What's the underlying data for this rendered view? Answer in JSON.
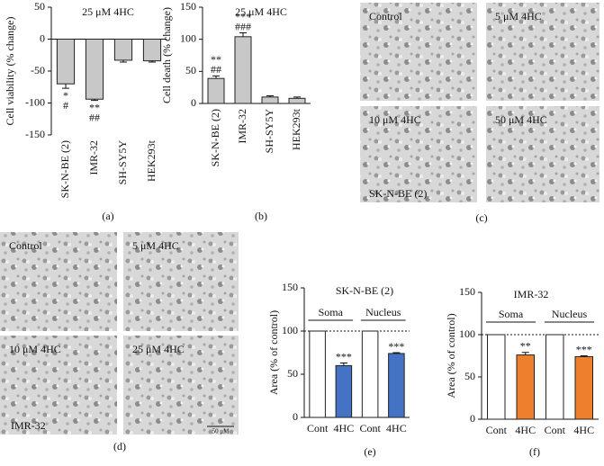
{
  "chart_data": [
    {
      "type": "bar",
      "panel_label": "(a)",
      "title": "25 μM 4HC",
      "y_label": "Cell viability (% change)",
      "categories": [
        "SK-N-BE (2)",
        "IMR-32",
        "SH-SY5Y",
        "HEK293t"
      ],
      "values": [
        -70,
        -94,
        -33,
        -34
      ],
      "errors": [
        7,
        2,
        3,
        2
      ],
      "color": "#c8c8c8",
      "annotations": [
        [
          "*",
          "#"
        ],
        [
          "**",
          "##"
        ],
        null,
        null
      ],
      "ylim": [
        -150,
        50
      ],
      "yticks": [
        50,
        0,
        -50,
        -100,
        -150
      ]
    },
    {
      "type": "bar",
      "panel_label": "(b)",
      "title": "25 μM 4HC",
      "y_label": "Cell death (% change)",
      "categories": [
        "SK-N-BE (2)",
        "IMR-32",
        "SH-SY5Y",
        "HEK293t"
      ],
      "values": [
        39,
        104,
        10,
        8
      ],
      "errors": [
        4,
        6,
        2,
        2
      ],
      "color": "#c8c8c8",
      "annotations": [
        [
          "**",
          "##"
        ],
        [
          "***",
          "###"
        ],
        null,
        null
      ],
      "ylim": [
        0,
        150
      ],
      "yticks": [
        0,
        50,
        100,
        150
      ]
    },
    {
      "type": "bar",
      "panel_label": "(e)",
      "title": "SK-N-BE (2)",
      "y_label": "Area (% of control)",
      "categories": [
        "Cont",
        "4HC",
        "Cont",
        "4HC"
      ],
      "groups": [
        "Soma",
        "Nucleus"
      ],
      "values": [
        100,
        60,
        100,
        74
      ],
      "errors": [
        null,
        3,
        null,
        1
      ],
      "colors": [
        "#ffffff",
        "#4472c4",
        "#ffffff",
        "#4472c4"
      ],
      "annotations": [
        null,
        [
          "***"
        ],
        null,
        [
          "***"
        ]
      ],
      "reference_line": 100,
      "ylim": [
        0,
        150
      ],
      "yticks": [
        0,
        50,
        100,
        150
      ]
    },
    {
      "type": "bar",
      "panel_label": "(f)",
      "title": "IMR-32",
      "y_label": "Area (% of control)",
      "categories": [
        "Cont",
        "4HC",
        "Cont",
        "4HC"
      ],
      "groups": [
        "Soma",
        "Nucleus"
      ],
      "values": [
        100,
        76,
        100,
        74
      ],
      "errors": [
        null,
        3,
        null,
        1
      ],
      "colors": [
        "#ffffff",
        "#ee7f2d",
        "#ffffff",
        "#ee7f2d"
      ],
      "annotations": [
        null,
        [
          "**"
        ],
        null,
        [
          "***"
        ]
      ],
      "reference_line": 100,
      "ylim": [
        0,
        150
      ],
      "yticks": [
        0,
        50,
        100,
        150
      ]
    }
  ],
  "image_panels": [
    {
      "panel_label": "(c)",
      "images": [
        "Control",
        "5 μM 4HC",
        "10 μM 4HC",
        "50 μM 4HC"
      ],
      "caption": "SK-N-BE (2)"
    },
    {
      "panel_label": "(d)",
      "images": [
        "Control",
        "5 μM 4HC",
        "10 μM 4HC",
        "25 μM 4HC"
      ],
      "caption": "IMR-32",
      "scale_bar": "50 μM"
    }
  ]
}
